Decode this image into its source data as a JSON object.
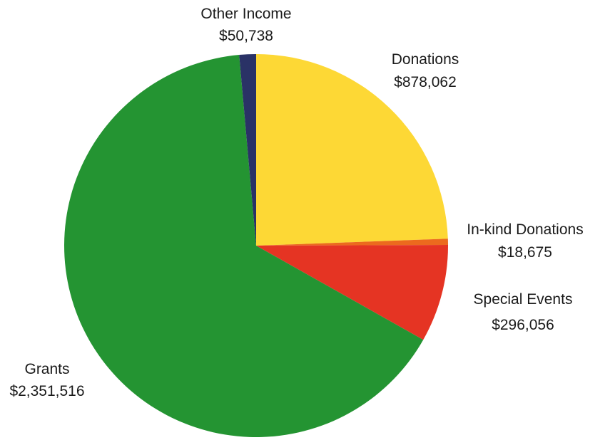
{
  "chart_data": {
    "type": "pie",
    "title": "",
    "categories": [
      "Donations",
      "In-kind Donations",
      "Special Events",
      "Grants",
      "Other Income"
    ],
    "values": [
      878062,
      18675,
      296056,
      2351516,
      50738
    ],
    "value_labels": [
      "$878,062",
      "$18,675",
      "$296,056",
      "$2,351,516",
      "$50,738"
    ],
    "colors": [
      "#fdd835",
      "#ec6a1e",
      "#e53423",
      "#249432",
      "#2a3266"
    ],
    "start": "12 o'clock",
    "direction": "clockwise",
    "legend": "none"
  }
}
